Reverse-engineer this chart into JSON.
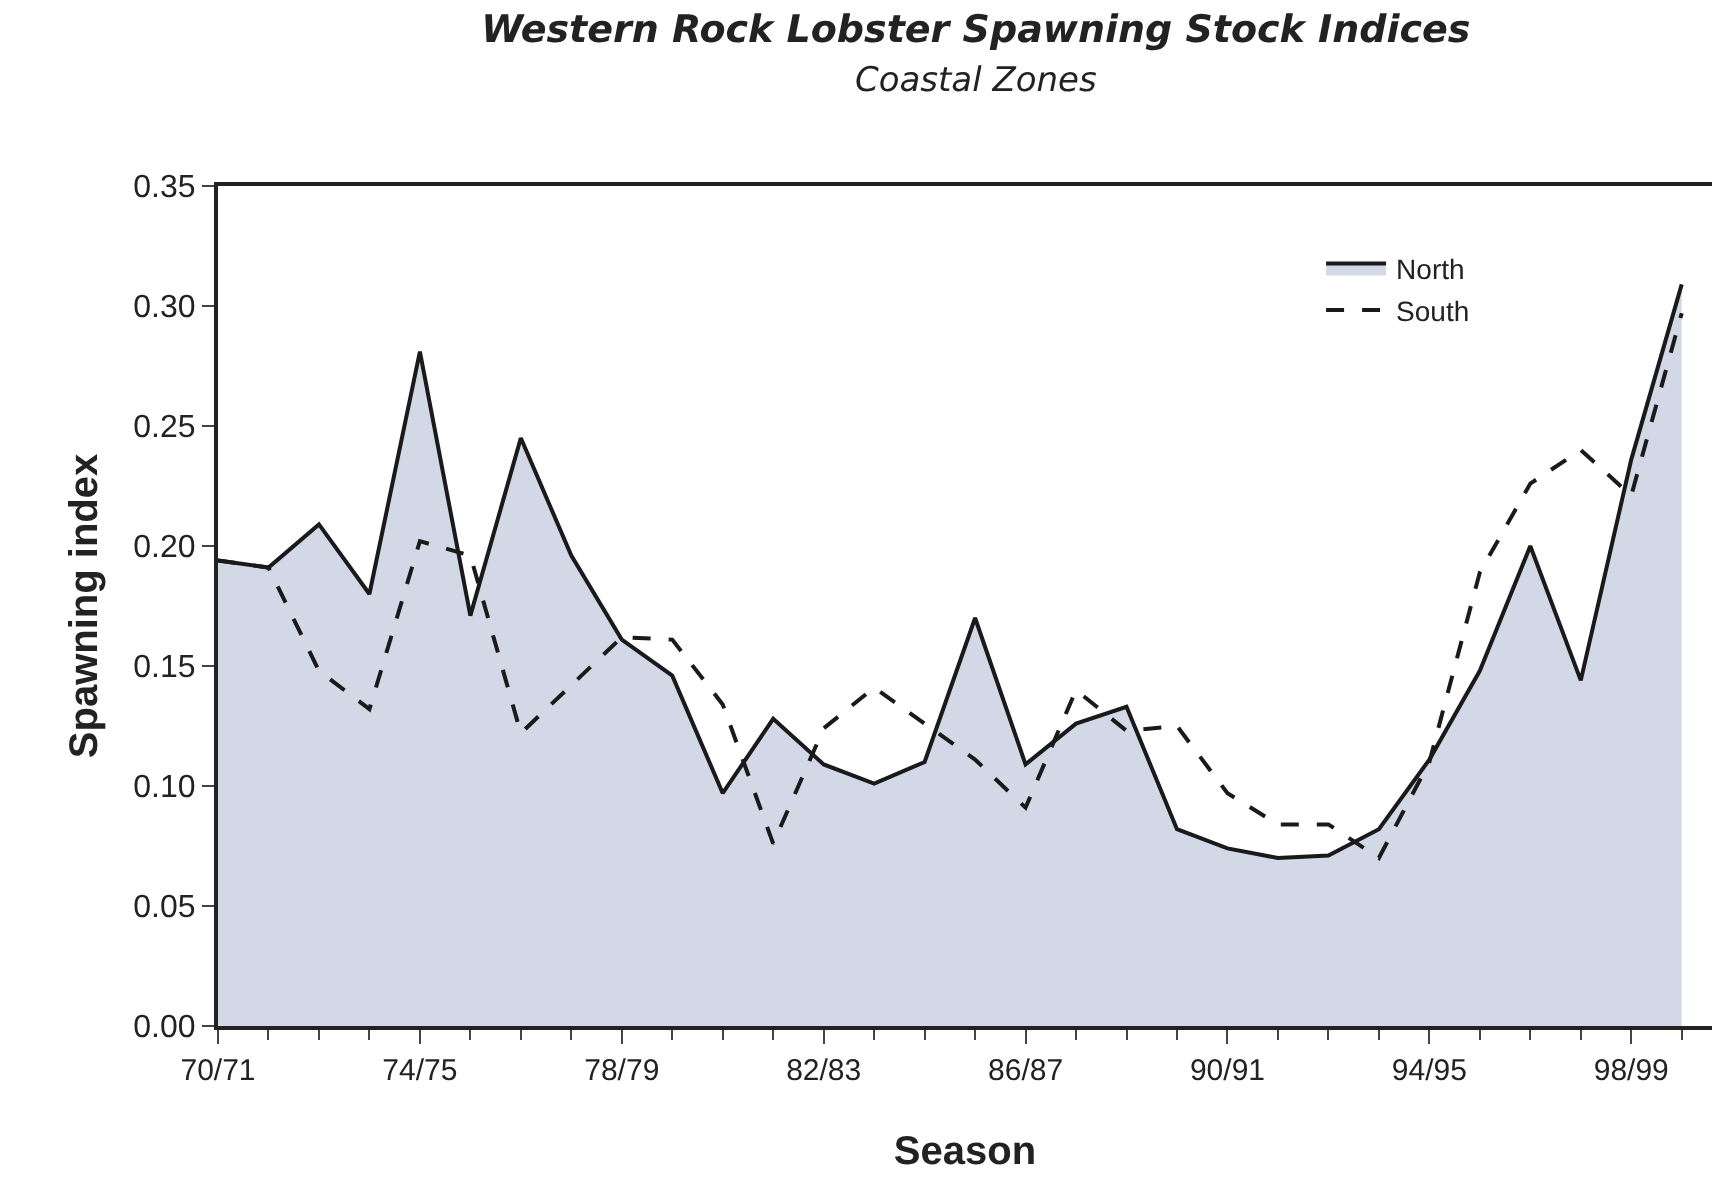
{
  "chart_data": {
    "type": "line",
    "title": "Western Rock Lobster Spawning Stock Indices",
    "subtitle": "Coastal Zones",
    "xlabel": "Season",
    "ylabel": "Spawning index",
    "categories": [
      "70/71",
      null,
      null,
      null,
      "74/75",
      null,
      null,
      null,
      "78/79",
      null,
      null,
      null,
      "82/83",
      null,
      null,
      null,
      "86/87",
      null,
      null,
      null,
      "90/91",
      null,
      null,
      null,
      "94/95",
      null,
      null,
      null,
      "98/99",
      null
    ],
    "series": [
      {
        "name": "North",
        "type": "area",
        "color": "#1a1a1a",
        "line_style": "solid",
        "values": [
          0.194,
          0.191,
          0.209,
          0.18,
          0.281,
          0.171,
          0.245,
          0.196,
          0.161,
          0.146,
          0.097,
          0.128,
          0.109,
          0.101,
          0.11,
          0.17,
          0.109,
          0.126,
          0.133,
          0.082,
          0.074,
          0.07,
          0.071,
          0.082,
          0.111,
          0.148,
          0.2,
          0.144,
          0.236,
          0.309
        ]
      },
      {
        "name": "South",
        "color": "#1a1a1a",
        "line_style": "dashed",
        "values": [
          0.194,
          0.191,
          0.148,
          0.132,
          0.202,
          0.196,
          0.122,
          0.142,
          0.162,
          0.161,
          0.134,
          0.076,
          0.124,
          0.141,
          0.126,
          0.111,
          0.091,
          0.14,
          0.123,
          0.125,
          0.097,
          0.084,
          0.084,
          0.07,
          0.11,
          0.189,
          0.226,
          0.24,
          0.221,
          0.297
        ]
      }
    ],
    "ylim": [
      0,
      0.35
    ],
    "yticks": [
      {
        "value": 0,
        "label": "0.00"
      },
      {
        "value": 0.05,
        "label": "0.05"
      },
      {
        "value": 0.1,
        "label": "0.10"
      },
      {
        "value": 0.15,
        "label": "0.15"
      },
      {
        "value": 0.2,
        "label": "0.20"
      },
      {
        "value": 0.25,
        "label": "0.25"
      },
      {
        "value": 0.3,
        "label": "0.30"
      },
      {
        "value": 0.35,
        "label": "0.35"
      }
    ],
    "legend": "top right",
    "marker": "none"
  }
}
